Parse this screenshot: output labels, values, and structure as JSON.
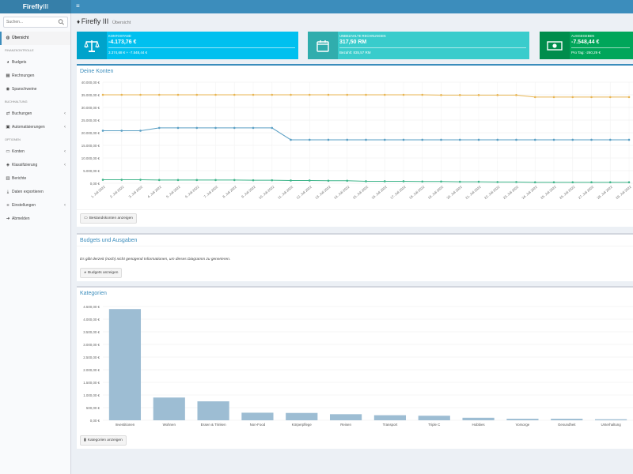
{
  "app": {
    "brand_bold": "Firefly",
    "brand_light": "III"
  },
  "sidebar": {
    "search_placeholder": "Suchen...",
    "sections": [
      {
        "header": "",
        "items": [
          {
            "label": "Übersicht",
            "icon": "dashboard-icon",
            "glyph": "◍",
            "active": true,
            "has_children": false
          }
        ]
      },
      {
        "header": "FINANZKONTROLLE",
        "items": [
          {
            "label": "Budgets",
            "icon": "pie-chart-icon",
            "glyph": "◕",
            "active": false,
            "has_children": false
          },
          {
            "label": "Rechnungen",
            "icon": "calendar-icon",
            "glyph": "▦",
            "active": false,
            "has_children": false
          },
          {
            "label": "Sparschweine",
            "icon": "piggy-bank-icon",
            "glyph": "◉",
            "active": false,
            "has_children": false
          }
        ]
      },
      {
        "header": "BUCHHALTUNG",
        "items": [
          {
            "label": "Buchungen",
            "icon": "exchange-icon",
            "glyph": "⇄",
            "active": false,
            "has_children": true
          },
          {
            "label": "Automatisierungen",
            "icon": "robot-icon",
            "glyph": "▣",
            "active": false,
            "has_children": true
          }
        ]
      },
      {
        "header": "OPTIONEN",
        "items": [
          {
            "label": "Konten",
            "icon": "credit-card-icon",
            "glyph": "▭",
            "active": false,
            "has_children": true
          },
          {
            "label": "Klassifizierung",
            "icon": "tags-icon",
            "glyph": "◈",
            "active": false,
            "has_children": true
          },
          {
            "label": "Berichte",
            "icon": "bar-chart-icon",
            "glyph": "▥",
            "active": false,
            "has_children": false
          },
          {
            "label": "Daten exportieren",
            "icon": "export-icon",
            "glyph": "⤓",
            "active": false,
            "has_children": false
          },
          {
            "label": "Einstellungen",
            "icon": "sliders-icon",
            "glyph": "≡",
            "active": false,
            "has_children": true
          },
          {
            "label": "Abmelden",
            "icon": "sign-out-icon",
            "glyph": "➜",
            "active": false,
            "has_children": false
          }
        ]
      }
    ]
  },
  "page": {
    "title": "Firefly III",
    "subtitle": "Übersicht"
  },
  "info_boxes": [
    {
      "key": "balance",
      "label": "KONTOSTAND",
      "value": "-4.173,76 €",
      "sub": "3.374,68 € + -7.548,44 €",
      "color": "#00c0ef",
      "icon": "balance-scale-icon"
    },
    {
      "key": "bills",
      "label": "UNBEZAHLTE RECHNUNGEN",
      "value": "317,50 RM",
      "sub": "Bezahlt: 835,57 RM",
      "color": "#39cccc",
      "icon": "calendar-icon"
    },
    {
      "key": "spent",
      "label": "AUSGEGEBEN",
      "value": "-7.548,44 €",
      "sub": "Pro Tag: -260,29 €",
      "color": "#00a65a",
      "icon": "money-bill-icon"
    }
  ],
  "accounts_box": {
    "title": "Deine Konten",
    "button": "Bestandskonten anzeigen"
  },
  "budgets_box": {
    "title": "Budgets und Ausgaben",
    "message": "Es gibt derzeit (noch) nicht genügend Informationen, um dieses Diagramm zu generieren.",
    "button": "Budgets anzeigen"
  },
  "categories_box": {
    "title": "Kategorien",
    "button": "Kategorien anzeigen"
  },
  "chart_data": [
    {
      "type": "line",
      "categories": [
        "1. Juli 2022",
        "2. Juli 2022",
        "3. Juli 2022",
        "4. Juli 2022",
        "5. Juli 2022",
        "6. Juli 2022",
        "7. Juli 2022",
        "8. Juli 2022",
        "9. Juli 2022",
        "10. Juli 2022",
        "11. Juli 2022",
        "12. Juli 2022",
        "13. Juli 2022",
        "14. Juli 2022",
        "15. Juli 2022",
        "16. Juli 2022",
        "17. Juli 2022",
        "18. Juli 2022",
        "19. Juli 2022",
        "20. Juli 2022",
        "21. Juli 2022",
        "22. Juli 2022",
        "23. Juli 2022",
        "24. Juli 2022",
        "25. Juli 2022",
        "26. Juli 2022",
        "27. Juli 2022",
        "28. Juli 2022",
        "29. Juli 2022"
      ],
      "y_ticks": [
        "0,00 €",
        "5.000,00 €",
        "10.000,00 €",
        "15.000,00 €",
        "20.000,00 €",
        "25.000,00 €",
        "30.000,00 €",
        "35.000,00 €",
        "40.000,00 €"
      ],
      "ylim": [
        0,
        40000
      ],
      "grid": true,
      "series": [
        {
          "color": "#e8b552",
          "values": [
            35000,
            35000,
            35000,
            35000,
            35000,
            35000,
            35000,
            35000,
            35000,
            35000,
            35000,
            35000,
            35000,
            35000,
            35000,
            35000,
            35000,
            35000,
            34900,
            34900,
            34900,
            34900,
            34900,
            34100,
            34100,
            34100,
            34100,
            34100,
            34100
          ]
        },
        {
          "color": "#5a9fc4",
          "values": [
            20800,
            20800,
            20800,
            21900,
            21900,
            21900,
            21900,
            21900,
            21900,
            21900,
            17200,
            17200,
            17200,
            17200,
            17200,
            17200,
            17200,
            17200,
            17200,
            17200,
            17200,
            17200,
            17200,
            17200,
            17200,
            17200,
            17200,
            17200,
            17200
          ]
        },
        {
          "color": "#3fb58a",
          "values": [
            1400,
            1400,
            1400,
            1300,
            1300,
            1300,
            1300,
            1300,
            1200,
            1200,
            1100,
            1100,
            1000,
            1000,
            800,
            800,
            800,
            700,
            700,
            600,
            600,
            500,
            500,
            400,
            400,
            400,
            400,
            400,
            400
          ]
        }
      ]
    },
    {
      "type": "bar",
      "categories": [
        "Investitionen",
        "Wohnen",
        "Essen & Trinken",
        "Non-Food",
        "Körperpflege",
        "Reisen",
        "Transport",
        "Triple C",
        "Hobbies",
        "Vorsorge",
        "Gesundheit",
        "Unterhaltung"
      ],
      "values": [
        4400,
        900,
        750,
        300,
        290,
        240,
        200,
        180,
        100,
        60,
        60,
        40
      ],
      "y_ticks": [
        "0,00 €",
        "500,00 €",
        "1.000,00 €",
        "1.500,00 €",
        "2.000,00 €",
        "2.500,00 €",
        "3.000,00 €",
        "3.500,00 €",
        "4.000,00 €",
        "4.500,00 €"
      ],
      "ylim": [
        0,
        4500
      ],
      "grid": true,
      "color": "#9dbdd3"
    }
  ]
}
